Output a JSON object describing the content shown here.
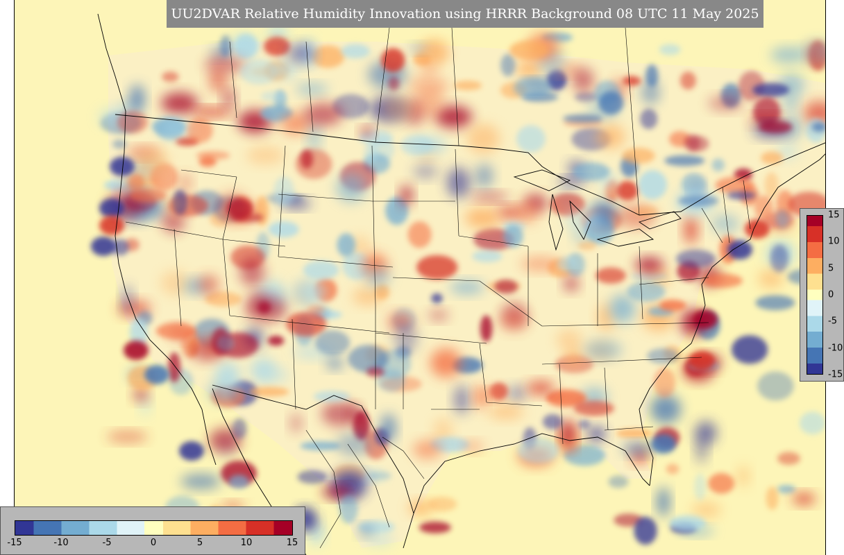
{
  "title": "UU2DVAR Relative Humidity Innovation using HRRR Background 08 UTC 11 May 2025",
  "colormap": {
    "name": "RdYlBu_r",
    "min": -15,
    "max": 15,
    "stops": [
      "#313695",
      "#4575b4",
      "#74add1",
      "#abd9e9",
      "#e0f3f8",
      "#ffffbf",
      "#fee090",
      "#fdae61",
      "#f46d43",
      "#d73027",
      "#a50026"
    ],
    "background": "#fdf5b8"
  },
  "vertical_colorbar": {
    "ticks": [
      "15",
      "10",
      "5",
      "0",
      "-5",
      "-10",
      "-15"
    ]
  },
  "horizontal_colorbar": {
    "ticks": [
      "-15",
      "-10",
      "-5",
      "0",
      "5",
      "10",
      "15"
    ]
  },
  "map": {
    "projection": "lambert-conformal",
    "region": "CONUS",
    "boundaries": "states-and-countries",
    "boundary_color": "#000000"
  }
}
